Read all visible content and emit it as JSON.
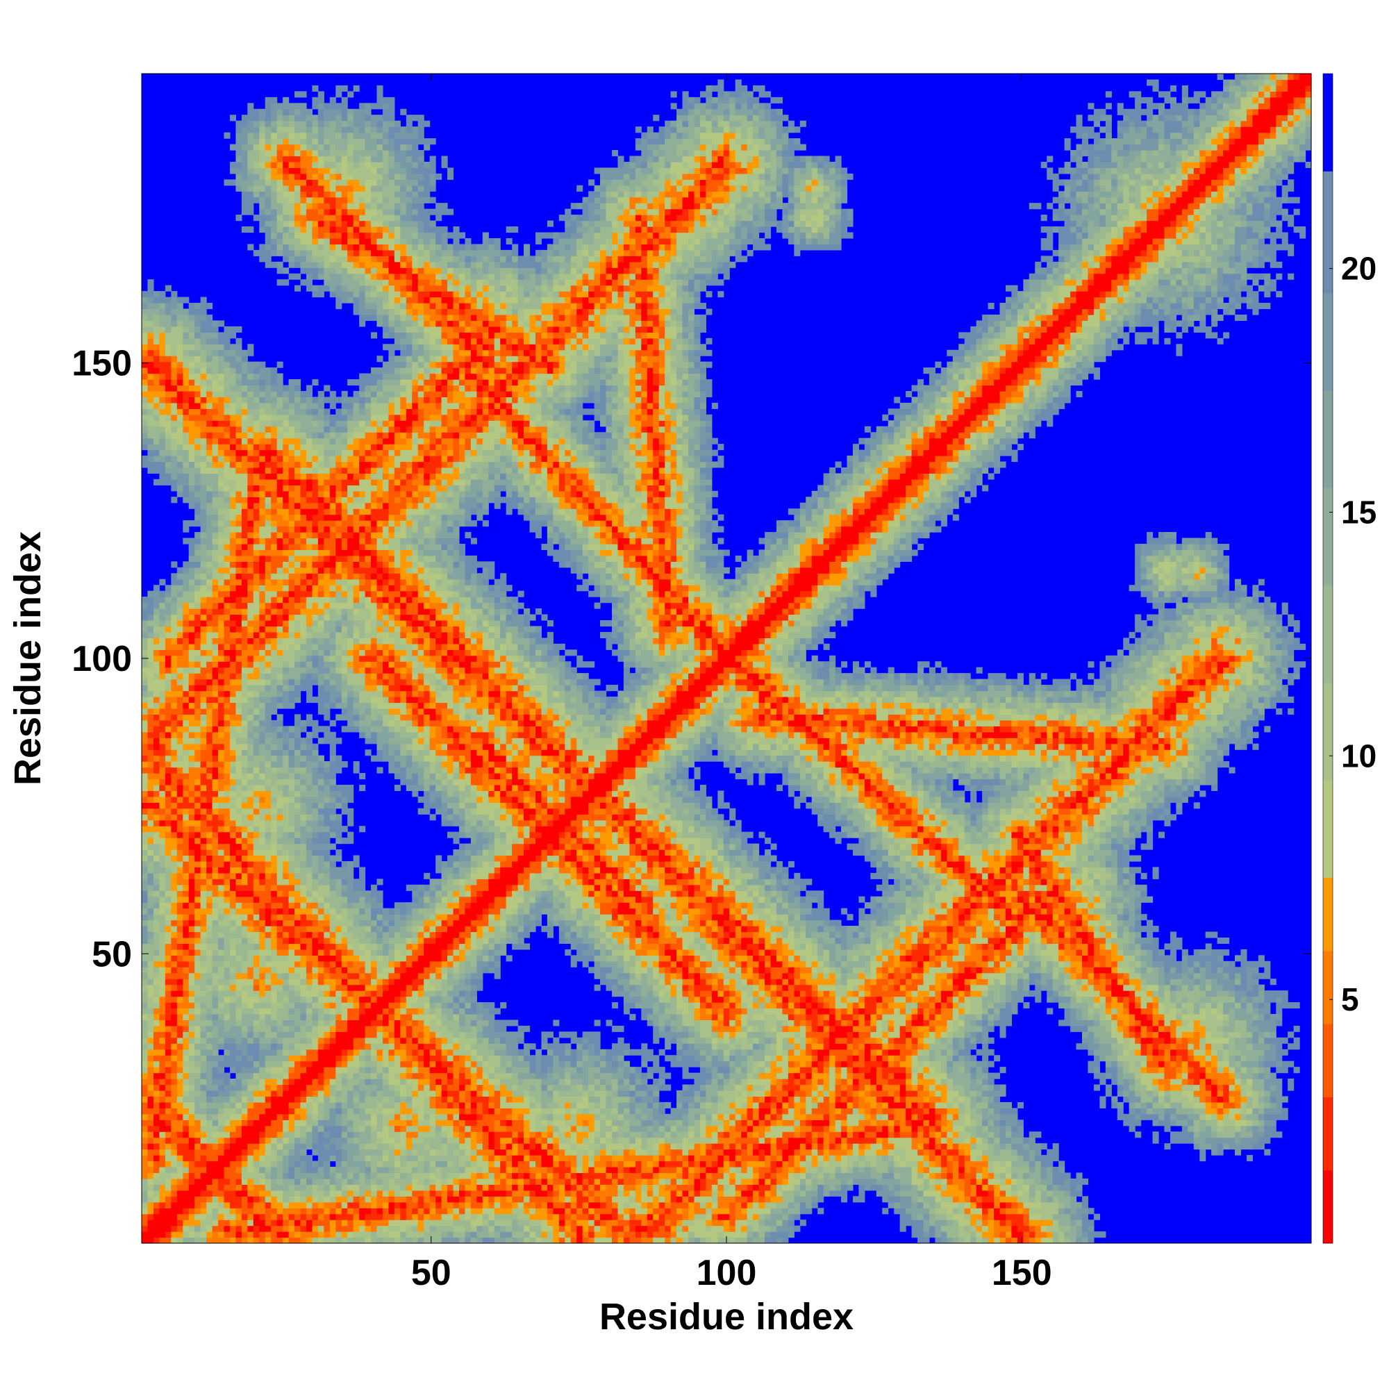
{
  "chart_data": {
    "type": "heatmap",
    "title": "",
    "xlabel": "Residue index",
    "ylabel": "Residue index",
    "n_residues": 199,
    "xlim": [
      1,
      199
    ],
    "ylim": [
      1,
      199
    ],
    "xticks": [
      50,
      100,
      150
    ],
    "yticks": [
      50,
      100,
      150
    ],
    "grid": false,
    "value_cap": 24,
    "colorbar": {
      "placement": "right",
      "ticks": [
        5,
        10,
        15,
        20
      ],
      "range": [
        0,
        24
      ],
      "colors": [
        {
          "max": 1.5,
          "color": "#ff0000"
        },
        {
          "max": 3.0,
          "color": "#ff2a00"
        },
        {
          "max": 4.5,
          "color": "#ff5a00"
        },
        {
          "max": 6.0,
          "color": "#ff7a00"
        },
        {
          "max": 7.5,
          "color": "#ff9900"
        },
        {
          "max": 9.5,
          "color": "#b4c882"
        },
        {
          "max": 11.5,
          "color": "#a8c08a"
        },
        {
          "max": 13.5,
          "color": "#9cb890"
        },
        {
          "max": 15.5,
          "color": "#90ae98"
        },
        {
          "max": 17.5,
          "color": "#84a4a0"
        },
        {
          "max": 19.5,
          "color": "#7898a8"
        },
        {
          "max": 22.0,
          "color": "#6c8cb0"
        },
        {
          "max": 24.0,
          "color": "#0000ff"
        }
      ]
    },
    "structure": {
      "diagonal": [
        {
          "x": 1,
          "y": 1
        },
        {
          "x": 199,
          "y": 199
        }
      ],
      "antidiagonals": [
        {
          "x1": 1,
          "y1": 24,
          "x2": 26,
          "y2": 1,
          "w": 3.0
        },
        {
          "x1": 1,
          "y1": 84,
          "x2": 75,
          "y2": 2,
          "w": 4.0
        },
        {
          "x1": 22,
          "y1": 135,
          "x2": 150,
          "y2": 2,
          "w": 4.0
        },
        {
          "x1": 40,
          "y1": 100,
          "x2": 100,
          "y2": 40,
          "w": 3.5
        },
        {
          "x1": 58,
          "y1": 86,
          "x2": 86,
          "y2": 58,
          "w": 3.0
        },
        {
          "x1": 90,
          "y1": 110,
          "x2": 150,
          "y2": 55,
          "w": 3.0
        },
        {
          "x1": 150,
          "y1": 60,
          "x2": 185,
          "y2": 25,
          "w": 3.0
        }
      ],
      "paralleldiagonals": [
        {
          "x1": 1,
          "y1": 85,
          "x2": 100,
          "y2": 184,
          "w": 4.0
        },
        {
          "x1": 5,
          "y1": 100,
          "x2": 60,
          "y2": 155,
          "w": 3.0
        },
        {
          "x1": 15,
          "y1": 2,
          "x2": 130,
          "y2": 20,
          "w": 3.0
        },
        {
          "x1": 30,
          "y1": 175,
          "x2": 70,
          "y2": 150,
          "w": 3.0
        },
        {
          "x1": 105,
          "y1": 90,
          "x2": 175,
          "y2": 85,
          "w": 3.0
        }
      ],
      "blobs": [
        {
          "x": 115,
          "y": 180,
          "r": 3.0
        },
        {
          "x": 175,
          "y": 115,
          "r": 3.0
        },
        {
          "x": 155,
          "y": 55,
          "r": 6.0
        },
        {
          "x": 178,
          "y": 35,
          "r": 8.0
        },
        {
          "x": 60,
          "y": 160,
          "r": 6.0
        },
        {
          "x": 35,
          "y": 180,
          "r": 8.0
        },
        {
          "x": 175,
          "y": 175,
          "r": 10.0
        },
        {
          "x": 20,
          "y": 75,
          "r": 8.0
        },
        {
          "x": 20,
          "y": 45,
          "r": 8.0
        }
      ]
    }
  }
}
